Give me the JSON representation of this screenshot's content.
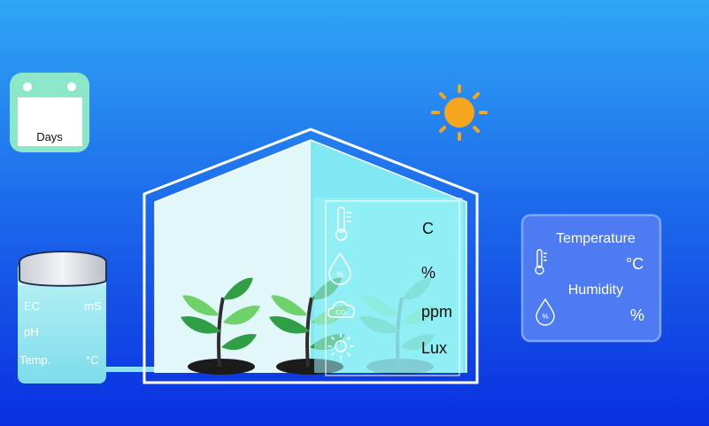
{
  "calendar": {
    "label": "Days"
  },
  "tank": {
    "ec_label": "EC",
    "ec_unit": "mS",
    "ph_label": "pH",
    "temp_label": "Temp.",
    "temp_unit": "°C"
  },
  "greenhouse_panel": {
    "temperature_unit": "C",
    "humidity_unit": "%",
    "co2_unit": "ppm",
    "light_unit": "Lux",
    "icons": [
      "thermometer-icon",
      "humidity-drop-icon",
      "co2-cloud-icon",
      "sun-light-icon"
    ]
  },
  "climate_card": {
    "temperature_label": "Temperature",
    "temperature_unit": "°C",
    "humidity_label": "Humidity",
    "humidity_unit": "%"
  },
  "colors": {
    "sky_top": "#2E8AF0",
    "sky_bottom": "#0A2BE0",
    "sun": "#F7A51C",
    "leaf_dark": "#2F9E44",
    "leaf_light": "#6FD16A",
    "calendar_green": "#8CE6C8",
    "tank_water": "#9FE7F0",
    "card_fill": "#4F7BF2"
  }
}
